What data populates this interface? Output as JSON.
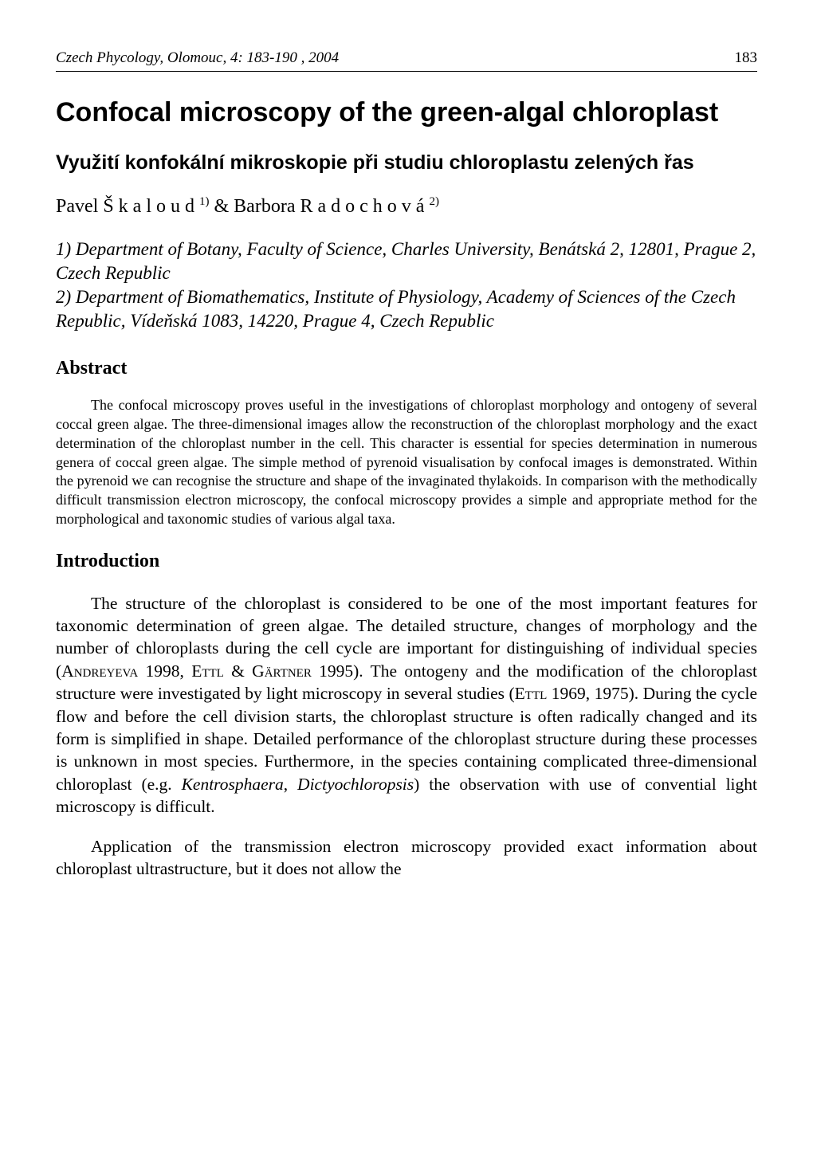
{
  "header": {
    "journal": "Czech Phycology, Olomouc, 4: 183-190 , 2004",
    "page": "183"
  },
  "title_en": "Confocal microscopy of the green-algal chloroplast",
  "title_cz": "Využití konfokální mikroskopie při studiu chloroplastu zelených řas",
  "authors_html": "Pavel Š k a l o u d <sup>1)</sup> & Barbora R a d o c h o v á <sup>2)</sup>",
  "affiliations": "1) Department of Botany, Faculty of Science, Charles University, Benátská 2, 12801, Prague 2, Czech Republic\n2) Department of Biomathematics, Institute of Physiology, Academy of Sciences of the Czech Republic, Vídeňská 1083, 14220, Prague 4, Czech Republic",
  "sections": {
    "abstract": {
      "heading": "Abstract",
      "text": "The confocal microscopy proves useful in the investigations of chloroplast morphology and ontogeny of several coccal green algae. The three-dimensional images allow the reconstruction of the chloroplast morphology and the exact determination of the chloroplast number in the cell. This character is essential for species determination in numerous genera of coccal green algae. The simple method of pyrenoid visualisation by confocal images is demonstrated. Within the pyrenoid we can recognise the structure and shape of the invaginated thylakoids. In comparison with the methodically difficult transmission electron microscopy, the confocal microscopy provides a simple and appropriate method for the morphological and taxonomic studies of various algal taxa."
    },
    "introduction": {
      "heading": "Introduction",
      "p1_html": "The structure of the chloroplast is considered to be one of the most important features for taxonomic determination of green algae. The detailed structure, changes of morphology and the number of chloroplasts during the cell cycle are important for distinguishing of individual species (A<span class=\"smallcaps\">ndreyeva</span> 1998, E<span class=\"smallcaps\">ttl</span> & G<span class=\"smallcaps\">ärtner</span> 1995). The ontogeny and the modification of the chloroplast structure were investigated by light microscopy in several studies (E<span class=\"smallcaps\">ttl</span> 1969, 1975). During the cycle flow and before the cell division starts, the chloroplast structure is often radically changed and its form is simplified in shape. Detailed performance of the chloroplast structure during these processes is unknown in most species. Furthermore, in the species containing complicated three-dimensional chloroplast (e.g. <i>Kentrosphaera</i>, <i>Dictyochloropsis</i>) the observation with use of convential light microscopy is difficult.",
      "p2_html": "Application of the transmission electron microscopy provided exact information about chloroplast ultrastructure, but it does not allow the"
    }
  },
  "typography": {
    "body_font": "Times New Roman",
    "heading_font": "Arial",
    "title_en_fontsize": 34,
    "title_cz_fontsize": 25,
    "author_fontsize": 24,
    "affiliation_fontsize": 23,
    "section_heading_fontsize": 24,
    "abstract_fontsize": 18,
    "body_fontsize": 21.5,
    "text_color": "#000000",
    "background_color": "#ffffff"
  }
}
